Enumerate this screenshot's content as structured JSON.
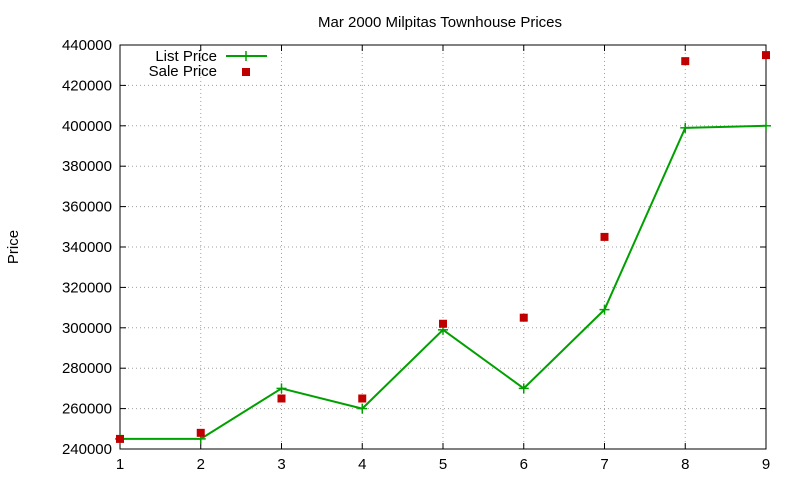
{
  "chart_data": {
    "type": "line",
    "title": "Mar 2000 Milpitas Townhouse Prices",
    "xlabel": "",
    "ylabel": "Price",
    "x": [
      1,
      2,
      3,
      4,
      5,
      6,
      7,
      8,
      9
    ],
    "xlim": [
      1,
      9
    ],
    "ylim": [
      240000,
      440000
    ],
    "xticks": [
      "1",
      "2",
      "3",
      "4",
      "5",
      "6",
      "7",
      "8",
      "9"
    ],
    "yticks": [
      "240000",
      "260000",
      "280000",
      "300000",
      "320000",
      "340000",
      "360000",
      "380000",
      "400000",
      "420000",
      "440000"
    ],
    "grid": true,
    "legend_position": "top-left",
    "series": [
      {
        "name": "List Price",
        "style": "line+cross",
        "color": "#00a000",
        "values": [
          245000,
          245000,
          270000,
          260000,
          299000,
          270000,
          309000,
          399000,
          400000
        ]
      },
      {
        "name": "Sale Price",
        "style": "square-points",
        "color": "#c00000",
        "values": [
          245000,
          248000,
          265000,
          265000,
          302000,
          305000,
          345000,
          432000,
          435000
        ]
      }
    ]
  }
}
